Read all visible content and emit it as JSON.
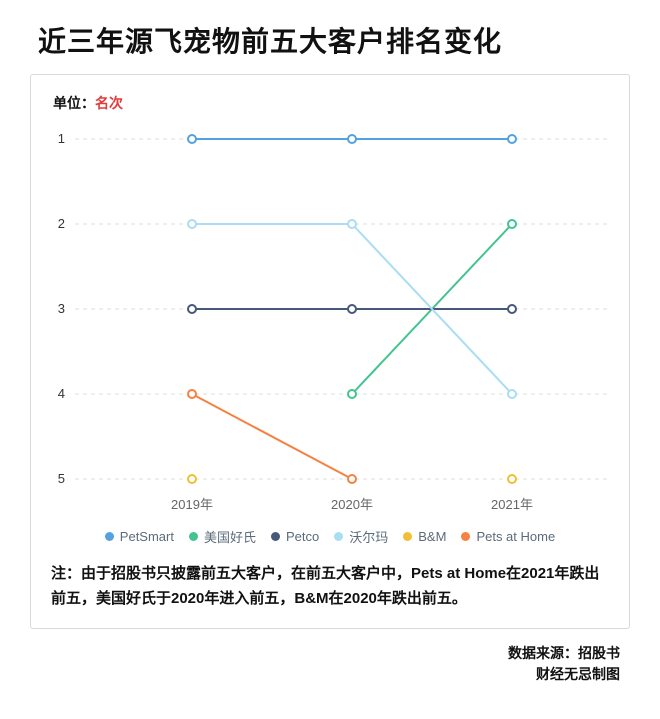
{
  "title": "近三年源飞宠物前五大客户排名变化",
  "unit": {
    "label": "单位：",
    "value": "名次"
  },
  "note": "注：由于招股书只披露前五大客户，在前五大客户中，Pets at Home在2021年跌出前五，美国好氏于2020年进入前五，B&M在2020年跌出前五。",
  "source": {
    "line1": "数据来源：招股书",
    "line2": "财经无忌制图"
  },
  "chart_data": {
    "type": "line",
    "subtype": "bump-ranking",
    "x_categories": [
      "2019年",
      "2020年",
      "2021年"
    ],
    "y_ticks": [
      1,
      2,
      3,
      4,
      5
    ],
    "y_axis_label": "名次",
    "y_inverted": true,
    "grid": "dashed-horizontal",
    "legend_position": "bottom",
    "point_style": "hollow-circle",
    "series": [
      {
        "name": "PetSmart",
        "color": "#55a1e0",
        "values": [
          1,
          1,
          1
        ]
      },
      {
        "name": "美国好氏",
        "color": "#43c48f",
        "values": [
          null,
          4,
          2
        ]
      },
      {
        "name": "Petco",
        "color": "#47587a",
        "values": [
          3,
          3,
          3
        ]
      },
      {
        "name": "沃尔玛",
        "color": "#a9ddf2",
        "values": [
          2,
          2,
          4
        ]
      },
      {
        "name": "B&M",
        "color": "#f0c032",
        "values": [
          5,
          null,
          5
        ]
      },
      {
        "name": "Pets at Home",
        "color": "#f58243",
        "values": [
          4,
          5,
          null
        ]
      }
    ]
  }
}
